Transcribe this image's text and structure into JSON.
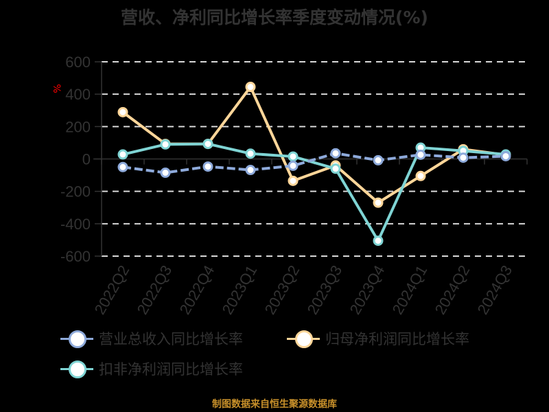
{
  "title": "营收、净利同比增长率季度变动情况(%)",
  "y_unit": "%",
  "source": "制图数据来自恒生聚源数据库",
  "legend": [
    {
      "label": "营业总收入同比增长率",
      "color": "#8eaadb"
    },
    {
      "label": "归母净利润同比增长率",
      "color": "#ffd699"
    },
    {
      "label": "扣非净利润同比增长率",
      "color": "#7fd4d4"
    }
  ],
  "chart_data": {
    "type": "line",
    "title": "营收、净利同比增长率季度变动情况(%)",
    "xlabel": "",
    "ylabel": "%",
    "ylim": [
      -600,
      600
    ],
    "yticks": [
      600,
      400,
      200,
      0,
      -200,
      -400,
      -600
    ],
    "grid": true,
    "legend_position": "bottom",
    "categories": [
      "2022Q2",
      "2022Q3",
      "2022Q4",
      "2023Q1",
      "2023Q2",
      "2023Q3",
      "2023Q4",
      "2024Q1",
      "2024Q2",
      "2024Q3"
    ],
    "series": [
      {
        "name": "营业总收入同比增长率",
        "color": "#8eaadb",
        "dashed": true,
        "values": [
          -50,
          -85,
          -47,
          -68,
          -42,
          35,
          -8,
          26,
          8,
          17
        ]
      },
      {
        "name": "归母净利润同比增长率",
        "color": "#ffd699",
        "dashed": false,
        "values": [
          289,
          93,
          93,
          445,
          -135,
          -40,
          -270,
          -105,
          60,
          25
        ]
      },
      {
        "name": "扣非净利润同比增长率",
        "color": "#7fd4d4",
        "dashed": false,
        "values": [
          28,
          90,
          93,
          33,
          15,
          -60,
          -505,
          70,
          50,
          28
        ]
      }
    ]
  }
}
